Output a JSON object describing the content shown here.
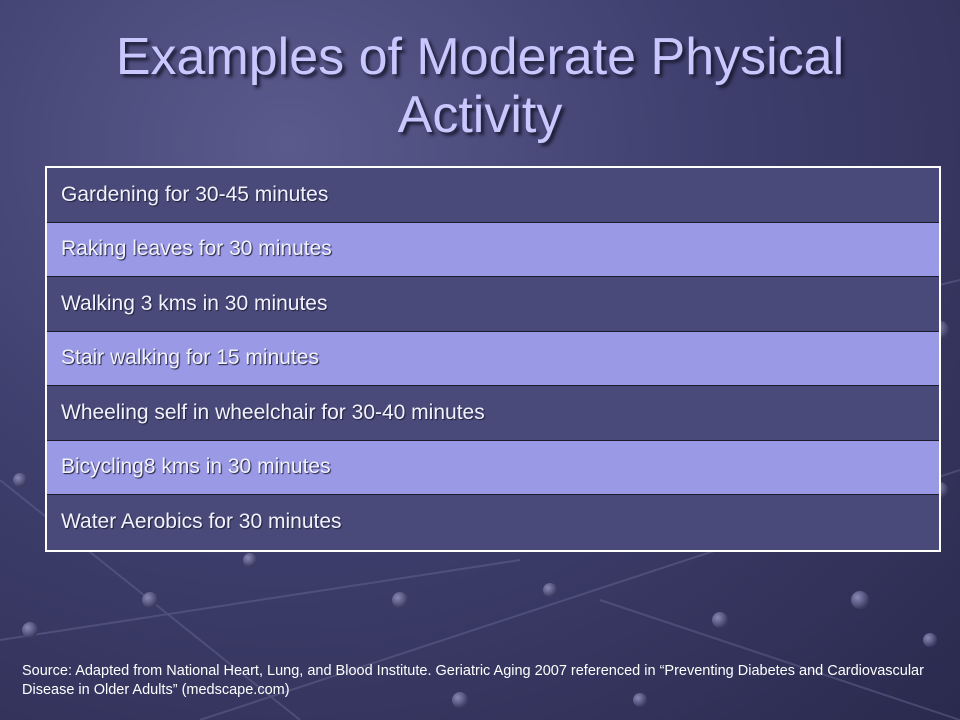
{
  "slide": {
    "title": "Examples of Moderate Physical Activity",
    "activities": [
      "Gardening for 30-45 minutes",
      "Raking leaves for 30 minutes",
      "Walking 3 kms in 30 minutes",
      "Stair walking for 15 minutes",
      "Wheeling self in wheelchair for 30-40 minutes",
      "Bicycling8 kms in 30 minutes",
      "Water Aerobics for 30 minutes"
    ],
    "source": "Source:  Adapted from National Heart, Lung, and Blood Institute.  Geriatric Aging 2007 referenced in “Preventing Diabetes and Cardiovascular Disease in Older Adults” (medscape.com)"
  },
  "colors": {
    "background": "#3f3f6e",
    "row_dark": "#4a4a7a",
    "row_light": "#9999e6",
    "title_text": "#c8c8ff"
  }
}
